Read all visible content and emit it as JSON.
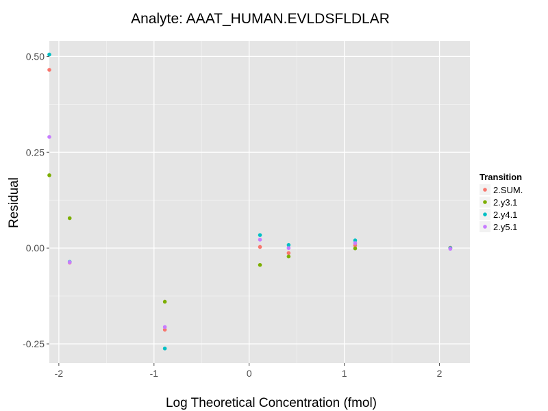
{
  "chart_data": {
    "type": "scatter",
    "title": "Analyte: AAAT_HUMAN.EVLDSFLDLAR",
    "xlabel": "Log Theoretical Concentration (fmol)",
    "ylabel": "Residual",
    "xlim": [
      -2.1,
      2.32
    ],
    "ylim": [
      -0.3,
      0.54
    ],
    "x_ticks": [
      -2,
      -1,
      0,
      1,
      2
    ],
    "x_tick_labels": [
      "-2",
      "-1",
      "0",
      "1",
      "2"
    ],
    "y_ticks": [
      -0.25,
      0,
      0.25,
      0.5
    ],
    "y_tick_labels": [
      "-0.25",
      "0.00",
      "0.25",
      "0.50"
    ],
    "grid": true,
    "legend": {
      "title": "Transition",
      "position": "right"
    },
    "series": [
      {
        "name": "2.SUM.",
        "color": "#F8766D",
        "x": [
          -2.1,
          -1.886,
          -0.886,
          0.114,
          0.415,
          1.114,
          2.114
        ],
        "y": [
          0.465,
          -0.038,
          -0.213,
          0.003,
          -0.013,
          0.007,
          0.001
        ]
      },
      {
        "name": "2.y3.1",
        "color": "#7CAE00",
        "x": [
          -2.1,
          -1.886,
          -0.886,
          0.114,
          0.415,
          1.114,
          2.114
        ],
        "y": [
          0.19,
          0.078,
          -0.14,
          -0.044,
          -0.022,
          -0.001,
          0.0
        ]
      },
      {
        "name": "2.y4.1",
        "color": "#00BFC4",
        "x": [
          -2.1,
          -1.886,
          -0.886,
          0.114,
          0.415,
          1.114,
          2.114
        ],
        "y": [
          0.505,
          -0.036,
          -0.262,
          0.034,
          0.008,
          0.02,
          0.0
        ]
      },
      {
        "name": "2.y5.1",
        "color": "#C77CFF",
        "x": [
          -2.1,
          -1.886,
          -0.886,
          0.114,
          0.415,
          1.114,
          2.114
        ],
        "y": [
          0.29,
          -0.037,
          -0.206,
          0.022,
          0.0,
          0.013,
          -0.002
        ]
      }
    ]
  },
  "style": {
    "panel_background": "#E5E5E5",
    "grid_color": "#FFFFFF",
    "tick_color": "#4D4D4D"
  }
}
